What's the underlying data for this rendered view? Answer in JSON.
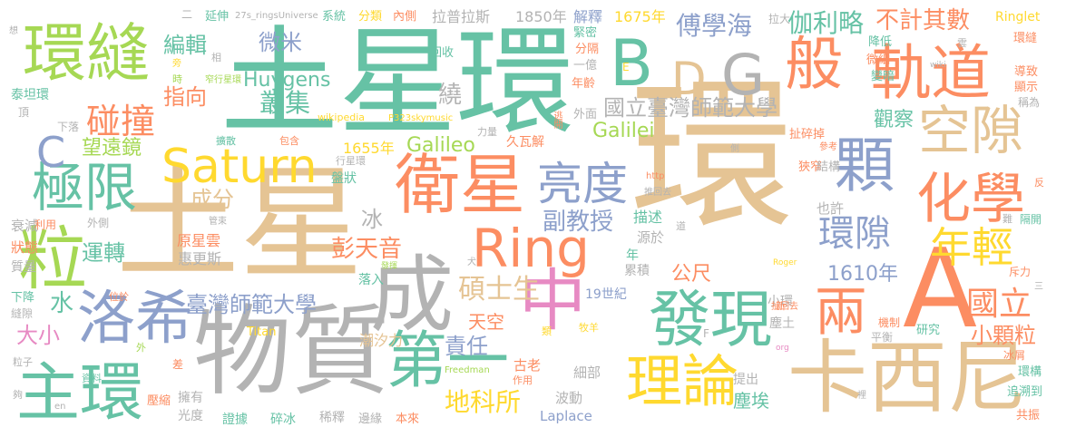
{
  "palette": {
    "teal": "#66c2a5",
    "orange": "#fc8d62",
    "blue": "#8da0cb",
    "pink": "#e78ac3",
    "green": "#a6d854",
    "yellow": "#ffd92f",
    "tan": "#e5c494",
    "gray": "#b3b3b3"
  },
  "words": [
    {
      "text": "土星環",
      "color": "teal"
    },
    {
      "text": "環",
      "color": "tan"
    },
    {
      "text": "土星",
      "color": "tan"
    },
    {
      "text": "物質",
      "color": "gray"
    },
    {
      "text": "卡西尼",
      "color": "tan"
    },
    {
      "text": "A",
      "color": "orange"
    },
    {
      "text": "中",
      "color": "pink"
    },
    {
      "text": "成",
      "color": "gray"
    },
    {
      "text": "發現",
      "color": "teal"
    },
    {
      "text": "衛星",
      "color": "orange"
    },
    {
      "text": "軌道",
      "color": "orange"
    },
    {
      "text": "環縫",
      "color": "green"
    },
    {
      "text": "主環",
      "color": "teal"
    },
    {
      "text": "粒",
      "color": "green"
    },
    {
      "text": "Saturn",
      "color": "yellow"
    },
    {
      "text": "Ring",
      "color": "orange"
    },
    {
      "text": "洛希",
      "color": "blue"
    },
    {
      "text": "第一",
      "color": "teal"
    },
    {
      "text": "理論",
      "color": "yellow"
    },
    {
      "text": "亮度",
      "color": "blue"
    },
    {
      "text": "化學",
      "color": "orange"
    },
    {
      "text": "顆",
      "color": "blue"
    },
    {
      "text": "極限",
      "color": "teal"
    },
    {
      "text": "碰撞",
      "color": "orange"
    },
    {
      "text": "B",
      "color": "teal"
    },
    {
      "text": "G",
      "color": "gray"
    },
    {
      "text": "D",
      "color": "tan"
    },
    {
      "text": "C",
      "color": "blue"
    },
    {
      "text": "般",
      "color": "orange"
    },
    {
      "text": "空隙",
      "color": "tan"
    },
    {
      "text": "年輕",
      "color": "yellow"
    },
    {
      "text": "兩",
      "color": "orange"
    },
    {
      "text": "環隙",
      "color": "blue"
    },
    {
      "text": "國立",
      "color": "orange"
    },
    {
      "text": "小顆粒",
      "color": "orange"
    },
    {
      "text": "1610年",
      "color": "blue"
    },
    {
      "text": "臺灣師範大學",
      "color": "blue"
    },
    {
      "text": "國立臺灣師範大學",
      "color": "gray"
    },
    {
      "text": "地科所",
      "color": "yellow"
    },
    {
      "text": "彭天音",
      "color": "orange"
    },
    {
      "text": "副教授",
      "color": "blue"
    },
    {
      "text": "碩士生",
      "color": "tan"
    },
    {
      "text": "責任",
      "color": "blue"
    },
    {
      "text": "天空",
      "color": "orange"
    },
    {
      "text": "公尺",
      "color": "orange"
    },
    {
      "text": "塵埃",
      "color": "teal"
    },
    {
      "text": "不計其數",
      "color": "orange"
    },
    {
      "text": "傅學海",
      "color": "blue"
    },
    {
      "text": "伽利略",
      "color": "teal"
    },
    {
      "text": "觀察",
      "color": "teal"
    },
    {
      "text": "Galileo",
      "color": "green"
    },
    {
      "text": "Galilei",
      "color": "green"
    },
    {
      "text": "Huygens",
      "color": "teal"
    },
    {
      "text": "1655年",
      "color": "yellow"
    },
    {
      "text": "望遠鏡",
      "color": "green"
    },
    {
      "text": "編輯",
      "color": "teal"
    },
    {
      "text": "微米",
      "color": "blue"
    },
    {
      "text": "叢集",
      "color": "teal"
    },
    {
      "text": "指向",
      "color": "orange"
    },
    {
      "text": "成分",
      "color": "tan"
    },
    {
      "text": "運轉",
      "color": "teal"
    },
    {
      "text": "大小",
      "color": "pink"
    },
    {
      "text": "水",
      "color": "teal"
    },
    {
      "text": "冰",
      "color": "gray"
    },
    {
      "text": "繞",
      "color": "gray"
    },
    {
      "text": "Ringlet",
      "color": "yellow"
    },
    {
      "text": "拉普拉斯",
      "color": "gray"
    },
    {
      "text": "1850年",
      "color": "gray"
    },
    {
      "text": "1675年",
      "color": "yellow"
    },
    {
      "text": "解釋",
      "color": "blue"
    },
    {
      "text": "系統",
      "color": "teal"
    },
    {
      "text": "分類",
      "color": "yellow"
    },
    {
      "text": "內側",
      "color": "orange"
    },
    {
      "text": "延伸",
      "color": "teal"
    },
    {
      "text": "27s_ringsUniverse",
      "color": "gray"
    },
    {
      "text": "回收",
      "color": "teal"
    },
    {
      "text": "緊密",
      "color": "teal"
    },
    {
      "text": "分隔",
      "color": "orange"
    },
    {
      "text": "一億",
      "color": "gray"
    },
    {
      "text": "年齡",
      "color": "orange"
    },
    {
      "text": "外面",
      "color": "gray"
    },
    {
      "text": "窄行星環",
      "color": "green"
    },
    {
      "text": "泰坦環",
      "color": "teal"
    },
    {
      "text": "wikipedia",
      "color": "yellow"
    },
    {
      "text": "P323skymusic",
      "color": "yellow"
    },
    {
      "text": "力量",
      "color": "gray"
    },
    {
      "text": "久瓦解",
      "color": "orange"
    },
    {
      "text": "扯碎掉",
      "color": "orange"
    },
    {
      "text": "降低",
      "color": "teal"
    },
    {
      "text": "微細",
      "color": "orange"
    },
    {
      "text": "變暗",
      "color": "teal"
    },
    {
      "text": "環縫",
      "color": "orange"
    },
    {
      "text": "導致",
      "color": "orange"
    },
    {
      "text": "顯示",
      "color": "orange"
    },
    {
      "text": "稱為",
      "color": "gray"
    },
    {
      "text": "拉大",
      "color": "gray"
    },
    {
      "text": "也許",
      "color": "gray"
    },
    {
      "text": "描述",
      "color": "teal"
    },
    {
      "text": "源於",
      "color": "gray"
    },
    {
      "text": "盤狀",
      "color": "teal"
    },
    {
      "text": "行星環",
      "color": "gray"
    },
    {
      "text": "原星雲",
      "color": "orange"
    },
    {
      "text": "惠更斯",
      "color": "gray"
    },
    {
      "text": "衰減",
      "color": "gray"
    },
    {
      "text": "狀態",
      "color": "orange"
    },
    {
      "text": "質量",
      "color": "gray"
    },
    {
      "text": "利用",
      "color": "orange"
    },
    {
      "text": "外側",
      "color": "gray"
    },
    {
      "text": "下降",
      "color": "teal"
    },
    {
      "text": "縫隙",
      "color": "gray"
    },
    {
      "text": "粒子",
      "color": "gray"
    },
    {
      "text": "19世紀",
      "color": "blue"
    },
    {
      "text": "累積",
      "color": "gray"
    },
    {
      "text": "落入",
      "color": "teal"
    },
    {
      "text": "潮汐力",
      "color": "tan"
    },
    {
      "text": "古老",
      "color": "orange"
    },
    {
      "text": "細部",
      "color": "gray"
    },
    {
      "text": "波動",
      "color": "gray"
    },
    {
      "text": "Laplace",
      "color": "blue"
    },
    {
      "text": "邊緣",
      "color": "gray"
    },
    {
      "text": "本來",
      "color": "orange"
    },
    {
      "text": "稀釋",
      "color": "gray"
    },
    {
      "text": "碎冰",
      "color": "teal"
    },
    {
      "text": "證據",
      "color": "teal"
    },
    {
      "text": "光度",
      "color": "gray"
    },
    {
      "text": "擁有",
      "color": "gray"
    },
    {
      "text": "壓縮",
      "color": "orange"
    },
    {
      "text": "資料",
      "color": "teal"
    },
    {
      "text": "追溯到",
      "color": "teal"
    },
    {
      "text": "環構",
      "color": "teal"
    },
    {
      "text": "冰屑",
      "color": "orange"
    },
    {
      "text": "共振",
      "color": "orange"
    },
    {
      "text": "研究",
      "color": "teal"
    },
    {
      "text": "機制",
      "color": "orange"
    },
    {
      "text": "平衡",
      "color": "gray"
    },
    {
      "text": "提出",
      "color": "gray"
    },
    {
      "text": "塵土",
      "color": "gray"
    },
    {
      "text": "小環",
      "color": "gray"
    },
    {
      "text": "斥力",
      "color": "orange"
    },
    {
      "text": "隔開",
      "color": "teal"
    },
    {
      "text": "狹窄",
      "color": "orange"
    },
    {
      "text": "結構",
      "color": "gray"
    },
    {
      "text": "Titan",
      "color": "yellow"
    },
    {
      "text": "Freedman",
      "color": "green"
    },
    {
      "text": "牧羊",
      "color": "yellow"
    },
    {
      "text": "類",
      "color": "yellow"
    },
    {
      "text": "包含",
      "color": "orange"
    },
    {
      "text": "擴散",
      "color": "teal"
    },
    {
      "text": "管束",
      "color": "gray"
    },
    {
      "text": "頂",
      "color": "gray"
    },
    {
      "text": "下落",
      "color": "gray"
    },
    {
      "text": "相",
      "color": "gray"
    },
    {
      "text": "時",
      "color": "green"
    },
    {
      "text": "旁",
      "color": "yellow"
    },
    {
      "text": "想",
      "color": "gray"
    },
    {
      "text": "二",
      "color": "gray"
    },
    {
      "text": "E",
      "color": "yellow"
    },
    {
      "text": "F",
      "color": "gray"
    },
    {
      "text": "wiki",
      "color": "gray"
    },
    {
      "text": "雲",
      "color": "gray"
    },
    {
      "text": "側",
      "color": "gray"
    },
    {
      "text": "參考",
      "color": "orange"
    },
    {
      "text": "反",
      "color": "orange"
    },
    {
      "text": "難",
      "color": "gray"
    },
    {
      "text": "Roger",
      "color": "yellow"
    },
    {
      "text": "扯回去",
      "color": "orange"
    },
    {
      "text": "org",
      "color": "pink"
    },
    {
      "text": "推回去",
      "color": "gray"
    },
    {
      "text": "http",
      "color": "orange"
    },
    {
      "text": "道",
      "color": "gray"
    },
    {
      "text": "新",
      "color": "orange"
    },
    {
      "text": "三",
      "color": "gray"
    },
    {
      "text": "裡",
      "color": "gray"
    },
    {
      "text": "年",
      "color": "teal"
    },
    {
      "text": "犬",
      "color": "gray"
    },
    {
      "text": "發揮",
      "color": "green"
    },
    {
      "text": "作用",
      "color": "orange"
    },
    {
      "text": "位於",
      "color": "orange"
    },
    {
      "text": "外",
      "color": "green"
    },
    {
      "text": "差",
      "color": "orange"
    },
    {
      "text": "en",
      "color": "gray"
    },
    {
      "text": "夠",
      "color": "gray"
    },
    {
      "text": "逃開",
      "color": "orange"
    }
  ]
}
